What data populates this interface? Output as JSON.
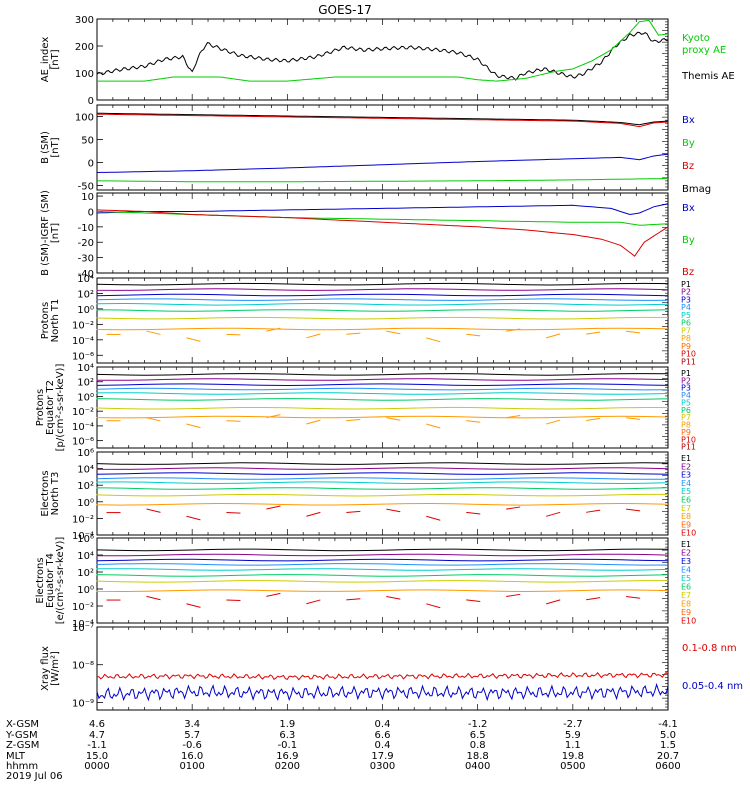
{
  "title": "GOES-17",
  "panels": [
    {
      "id": "ae",
      "ylabel": [
        "AE_index",
        "[nT]"
      ],
      "ticks": [
        "300",
        "200",
        "100",
        "0"
      ],
      "tick_values": [
        300,
        200,
        100,
        0
      ],
      "ylim": [
        0,
        300
      ],
      "log": false,
      "legend": [
        {
          "text": "Kyoto",
          "color": "#00cc00"
        },
        {
          "text": "proxy AE",
          "color": "#00cc00"
        },
        {
          "text": "Themis AE",
          "color": "#000000"
        }
      ]
    },
    {
      "id": "bsm",
      "ylabel": [
        "B (SM)",
        "[nT]"
      ],
      "ticks": [
        "100",
        "50",
        "0",
        "-50"
      ],
      "tick_values": [
        100,
        50,
        0,
        -50
      ],
      "ylim": [
        -60,
        125
      ],
      "log": false,
      "legend": [
        {
          "text": "Bx",
          "color": "#0000cc"
        },
        {
          "text": "By",
          "color": "#00cc00"
        },
        {
          "text": "Bz",
          "color": "#dd0000"
        },
        {
          "text": "Bmag",
          "color": "#000000"
        }
      ]
    },
    {
      "id": "bigrf",
      "ylabel": [
        "B (SM)-IGRF (SM)",
        "[nT]"
      ],
      "ticks": [
        "10",
        "0",
        "-10",
        "-20",
        "-30",
        "-40"
      ],
      "tick_values": [
        10,
        0,
        -10,
        -20,
        -30,
        -40
      ],
      "ylim": [
        -40,
        12
      ],
      "log": false,
      "legend": [
        {
          "text": "Bx",
          "color": "#0000cc"
        },
        {
          "text": "By",
          "color": "#00cc00"
        },
        {
          "text": "Bz",
          "color": "#dd0000"
        }
      ]
    },
    {
      "id": "pnorth",
      "ylabel": [
        "Protons",
        "North T1"
      ],
      "ticks": [
        "10⁴",
        "10²",
        "10⁰",
        "10⁻²",
        "10⁻⁴",
        "10⁻⁶"
      ],
      "tick_values": [
        4,
        2,
        0,
        -2,
        -4,
        -6
      ],
      "ylim": [
        -7,
        4
      ],
      "log": true,
      "legend_compact": [
        "P1",
        "P2",
        "P3",
        "P4",
        "P5",
        "P6",
        "P7",
        "P8",
        "P9",
        "P10",
        "P11"
      ]
    },
    {
      "id": "pequator",
      "ylabel": [
        "Protons",
        "Equator T2",
        "[p/(cm²-s-sr-keV)]"
      ],
      "ticks": [
        "10⁴",
        "10²",
        "10⁰",
        "10⁻²",
        "10⁻⁴",
        "10⁻⁶"
      ],
      "tick_values": [
        4,
        2,
        0,
        -2,
        -4,
        -6
      ],
      "ylim": [
        -7,
        4
      ],
      "log": true,
      "legend_compact": [
        "P1",
        "P2",
        "P3",
        "P4",
        "P5",
        "P6",
        "P7",
        "P8",
        "P9",
        "P10",
        "P11"
      ]
    },
    {
      "id": "enorth",
      "ylabel": [
        "Electrons",
        "North T3"
      ],
      "ticks": [
        "10⁶",
        "10⁴",
        "10²",
        "10⁰",
        "10⁻²",
        "10⁻⁴"
      ],
      "tick_values": [
        6,
        4,
        2,
        0,
        -2,
        -4
      ],
      "ylim": [
        -4,
        6
      ],
      "log": true,
      "legend_compact": [
        "E1",
        "E2",
        "E3",
        "E4",
        "E5",
        "E6",
        "E7",
        "E8",
        "E9",
        "E10"
      ]
    },
    {
      "id": "eequator",
      "ylabel": [
        "Electrons",
        "Equator T4",
        "[e/(cm²-s-sr-keV)]"
      ],
      "ticks": [
        "10⁶",
        "10⁴",
        "10²",
        "10⁰",
        "10⁻²",
        "10⁻⁴"
      ],
      "tick_values": [
        6,
        4,
        2,
        0,
        -2,
        -4
      ],
      "ylim": [
        -4,
        6
      ],
      "log": true,
      "legend_compact": [
        "E1",
        "E2",
        "E3",
        "E4",
        "E5",
        "E6",
        "E7",
        "E8",
        "E9",
        "E10"
      ]
    },
    {
      "id": "xray",
      "ylabel": [
        "Xray flux",
        "[W/m²]"
      ],
      "ticks": [
        "10⁻⁷",
        "10⁻⁸",
        "10⁻⁹"
      ],
      "tick_values": [
        -7,
        -8,
        -9
      ],
      "ylim": [
        -9.2,
        -7
      ],
      "log": true,
      "legend": [
        {
          "text": "0.1-0.8 nm",
          "color": "#dd0000"
        },
        {
          "text": "0.05-0.4 nm",
          "color": "#0000cc"
        }
      ]
    }
  ],
  "compact_colors": [
    "#000000",
    "#8b008b",
    "#0000cc",
    "#1e90ff",
    "#00cccc",
    "#00cc66",
    "#cccc00",
    "#ff9900",
    "#ff6600",
    "#dd0000",
    "#b00000"
  ],
  "xaxis": {
    "labels": [
      "X-GSM",
      "Y-GSM",
      "Z-GSM",
      "MLT",
      "hhmm",
      "2019 Jul 06"
    ],
    "columns": [
      {
        "vals": [
          "4.6",
          "4.7",
          "-1.1",
          "15.0",
          "0000"
        ]
      },
      {
        "vals": [
          "3.4",
          "5.7",
          "-0.6",
          "16.0",
          "0100"
        ]
      },
      {
        "vals": [
          "1.9",
          "6.3",
          "-0.1",
          "16.9",
          "0200"
        ]
      },
      {
        "vals": [
          "0.4",
          "6.6",
          "0.4",
          "17.9",
          "0300"
        ]
      },
      {
        "vals": [
          "-1.2",
          "6.5",
          "0.8",
          "18.8",
          "0400"
        ]
      },
      {
        "vals": [
          "-2.7",
          "5.9",
          "1.1",
          "19.8",
          "0500"
        ]
      },
      {
        "vals": [
          "-4.1",
          "5.0",
          "1.5",
          "20.7",
          "0600"
        ]
      }
    ]
  },
  "chart_data": {
    "type": "line",
    "x_range_hours": [
      0,
      6
    ],
    "series": [
      {
        "panel": "ae",
        "name": "Themis AE",
        "color": "#000000",
        "x": [
          0,
          0.2,
          0.5,
          0.7,
          0.9,
          1.0,
          1.05,
          1.15,
          1.3,
          1.5,
          1.8,
          2.0,
          2.3,
          2.6,
          2.8,
          3.0,
          3.3,
          3.6,
          3.8,
          4.0,
          4.2,
          4.4,
          4.5,
          4.7,
          4.9,
          5.0,
          5.1,
          5.3,
          5.45,
          5.6,
          5.75,
          5.85,
          6.0
        ],
        "y": [
          95,
          110,
          125,
          150,
          160,
          100,
          150,
          210,
          190,
          165,
          150,
          145,
          160,
          195,
          185,
          190,
          195,
          185,
          175,
          150,
          90,
          80,
          100,
          115,
          95,
          85,
          95,
          140,
          200,
          240,
          250,
          215,
          225
        ]
      },
      {
        "panel": "ae",
        "name": "Kyoto proxy AE",
        "color": "#00cc00",
        "x": [
          0,
          0.5,
          0.8,
          1.3,
          1.6,
          2.0,
          2.5,
          3.0,
          3.5,
          3.8,
          4.0,
          4.2,
          4.5,
          4.8,
          5.0,
          5.2,
          5.4,
          5.6,
          5.7,
          5.8,
          5.9,
          6.0
        ],
        "y": [
          70,
          70,
          85,
          85,
          70,
          70,
          85,
          85,
          85,
          85,
          75,
          70,
          80,
          105,
          115,
          145,
          185,
          250,
          290,
          295,
          240,
          245
        ]
      },
      {
        "panel": "bsm",
        "name": "Bmag",
        "color": "#000000",
        "x": [
          0,
          1,
          2,
          3,
          4,
          5,
          5.5,
          5.7,
          5.85,
          6.0
        ],
        "y": [
          107,
          104,
          101,
          98,
          95,
          92,
          87,
          82,
          88,
          90
        ]
      },
      {
        "panel": "bsm",
        "name": "Bz",
        "color": "#dd0000",
        "x": [
          0,
          1,
          2,
          3,
          4,
          5,
          5.5,
          5.7,
          5.85,
          6.0
        ],
        "y": [
          105,
          102,
          99,
          96,
          93,
          90,
          85,
          78,
          86,
          88
        ]
      },
      {
        "panel": "bsm",
        "name": "Bx",
        "color": "#0000cc",
        "x": [
          0,
          1,
          2,
          3,
          4,
          5,
          5.5,
          5.7,
          5.85,
          6.0
        ],
        "y": [
          -22,
          -18,
          -12,
          -5,
          2,
          8,
          11,
          6,
          14,
          18
        ]
      },
      {
        "panel": "bsm",
        "name": "By",
        "color": "#00cc00",
        "x": [
          0,
          1,
          2,
          3,
          4,
          5,
          6
        ],
        "y": [
          -40,
          -42,
          -42,
          -41,
          -40,
          -38,
          -35
        ]
      },
      {
        "panel": "bigrf",
        "name": "Bx",
        "color": "#0000cc",
        "x": [
          0,
          0.5,
          1,
          2,
          3,
          4,
          5,
          5.4,
          5.6,
          5.7,
          5.85,
          6.0
        ],
        "y": [
          -1,
          0,
          0,
          1,
          2,
          3,
          4,
          2,
          -2,
          -1,
          3,
          5
        ]
      },
      {
        "panel": "bigrf",
        "name": "By",
        "color": "#00cc00",
        "x": [
          0,
          0.5,
          1,
          1.5,
          2,
          3,
          4,
          5,
          5.5,
          5.7,
          6.0
        ],
        "y": [
          0,
          -1,
          -2,
          -3,
          -4,
          -5,
          -6,
          -7,
          -7,
          -9,
          -8
        ]
      },
      {
        "panel": "bigrf",
        "name": "Bz",
        "color": "#dd0000",
        "x": [
          0,
          0.5,
          1,
          1.5,
          2,
          3,
          4,
          4.5,
          5,
          5.3,
          5.5,
          5.65,
          5.75,
          5.9,
          6.0
        ],
        "y": [
          1,
          0,
          -2,
          -3,
          -4,
          -7,
          -10,
          -12,
          -15,
          -18,
          -22,
          -29,
          -20,
          -14,
          -10
        ]
      },
      {
        "panel": "xray",
        "name": "0.1-0.8 nm",
        "color": "#dd0000",
        "x": [
          0,
          1,
          2,
          3,
          4,
          5,
          6
        ],
        "y": [
          -8.32,
          -8.3,
          -8.33,
          -8.31,
          -8.3,
          -8.28,
          -8.27
        ]
      },
      {
        "panel": "xray",
        "name": "0.05-0.4 nm",
        "color": "#0000cc",
        "x": [
          0,
          1,
          2,
          3,
          4,
          5,
          6
        ],
        "y": [
          -8.8,
          -8.72,
          -8.76,
          -8.73,
          -8.75,
          -8.74,
          -8.7
        ]
      }
    ],
    "flux_levels": {
      "pnorth": [
        3.2,
        2.5,
        1.8,
        1.2,
        0.6,
        -0.2,
        -1.2,
        -2.6
      ],
      "pequator": [
        3.0,
        2.3,
        1.6,
        1.0,
        0.4,
        -0.4,
        -1.6,
        -2.8
      ],
      "enorth": [
        4.6,
        4.0,
        3.4,
        2.8,
        2.3,
        1.6,
        0.8,
        -0.3
      ],
      "eequator": [
        4.6,
        4.0,
        3.4,
        2.9,
        2.3,
        1.6,
        0.9,
        -0.2
      ]
    }
  }
}
